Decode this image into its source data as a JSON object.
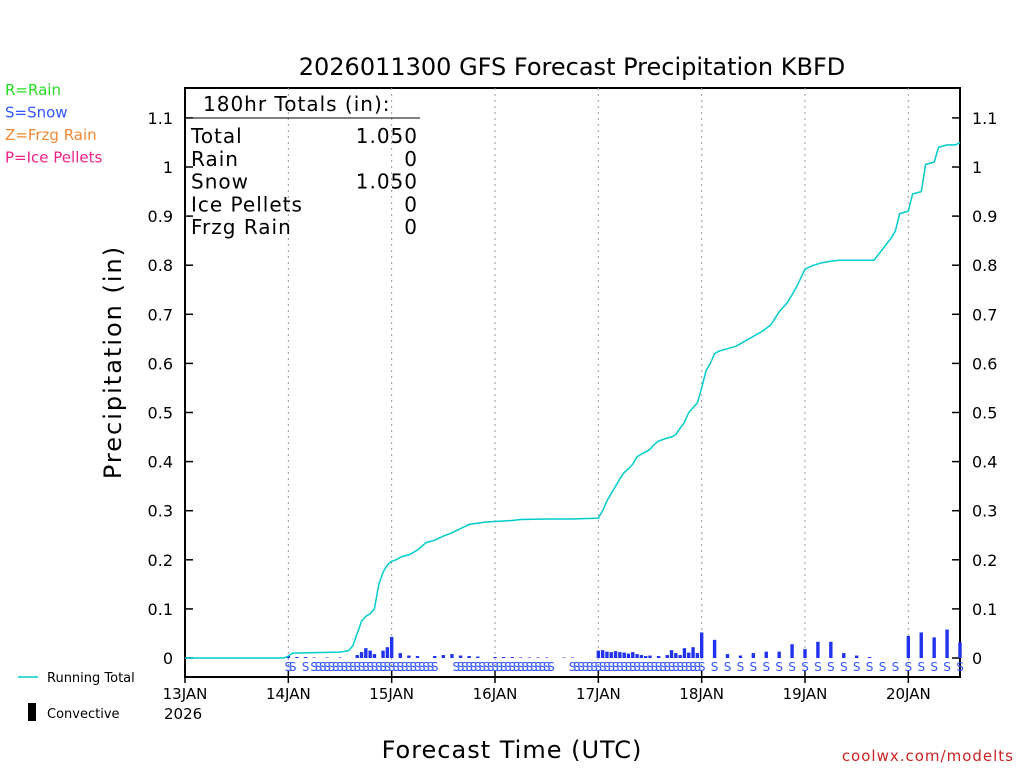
{
  "chart_data": {
    "type": "bar",
    "title": "2026011300 GFS Forecast Precipitation KBFD",
    "xlabel": "Forecast Time (UTC)",
    "ylabel": "Precipitation (in)",
    "ylim": [
      -0.04,
      1.15
    ],
    "xlim_hours": [
      0,
      180
    ],
    "y_ticks": [
      "0",
      "0.1",
      "0.2",
      "0.3",
      "0.4",
      "0.5",
      "0.6",
      "0.7",
      "0.8",
      "0.9",
      "1",
      "1.1"
    ],
    "y_tick_values": [
      0,
      0.1,
      0.2,
      0.3,
      0.4,
      0.5,
      0.6,
      0.7,
      0.8,
      0.9,
      1.0,
      1.1
    ],
    "x_ticks": [
      {
        "label": "13JAN",
        "hour": 0
      },
      {
        "label": "14JAN",
        "hour": 24
      },
      {
        "label": "15JAN",
        "hour": 48
      },
      {
        "label": "16JAN",
        "hour": 72
      },
      {
        "label": "17JAN",
        "hour": 96
      },
      {
        "label": "18JAN",
        "hour": 120
      },
      {
        "label": "19JAN",
        "hour": 144
      },
      {
        "label": "20JAN",
        "hour": 168
      }
    ],
    "year_label": "2026",
    "legend_top": [
      {
        "text": "R=Rain",
        "color": "#22dd22"
      },
      {
        "text": "S=Snow",
        "color": "#3355ff"
      },
      {
        "text": "Z=Frzg Rain",
        "color": "#ee8833"
      },
      {
        "text": "P=Ice Pellets",
        "color": "#ee2288"
      }
    ],
    "legend_bottom": [
      {
        "text": "Running Total",
        "color": "#00cccc",
        "kind": "line"
      },
      {
        "text": "Convective",
        "color": "#000000",
        "kind": "bar"
      }
    ],
    "totals": {
      "header": "180hr Totals (in):",
      "rows": [
        {
          "label": "Total",
          "value": "1.050"
        },
        {
          "label": "Rain",
          "value": "0"
        },
        {
          "label": "Snow",
          "value": "1.050"
        },
        {
          "label": "Ice Pellets",
          "value": "0"
        },
        {
          "label": "Frzg Rain",
          "value": "0"
        }
      ]
    },
    "series": [
      {
        "name": "Running Total",
        "color": "#00cccc",
        "x": [
          0,
          23,
          24,
          25,
          30,
          36,
          38,
          39,
          40,
          41,
          42,
          43,
          44,
          45,
          46,
          47,
          48,
          49,
          50,
          51,
          52,
          54,
          56,
          58,
          60,
          62,
          66,
          70,
          72,
          74,
          76,
          78,
          84,
          90,
          96,
          97,
          98,
          99,
          100,
          101,
          102,
          103,
          104,
          105,
          106,
          107,
          108,
          109,
          110,
          111,
          112,
          113,
          114,
          115,
          116,
          117,
          118,
          119,
          120,
          121,
          122,
          123,
          124,
          126,
          128,
          130,
          132,
          134,
          136,
          138,
          140,
          142,
          144,
          146,
          148,
          150,
          152,
          154,
          156,
          160,
          164,
          165,
          166,
          168,
          169,
          171,
          172,
          174,
          175,
          177,
          178,
          179,
          180
        ],
        "values": [
          0,
          0,
          0.004,
          0.01,
          0.011,
          0.012,
          0.015,
          0.025,
          0.05,
          0.075,
          0.085,
          0.09,
          0.1,
          0.15,
          0.175,
          0.19,
          0.197,
          0.2,
          0.205,
          0.208,
          0.21,
          0.22,
          0.235,
          0.24,
          0.248,
          0.255,
          0.272,
          0.277,
          0.278,
          0.279,
          0.28,
          0.282,
          0.283,
          0.283,
          0.285,
          0.3,
          0.32,
          0.335,
          0.35,
          0.365,
          0.378,
          0.385,
          0.395,
          0.41,
          0.415,
          0.42,
          0.425,
          0.435,
          0.442,
          0.445,
          0.448,
          0.45,
          0.455,
          0.468,
          0.48,
          0.5,
          0.51,
          0.52,
          0.55,
          0.585,
          0.6,
          0.62,
          0.625,
          0.63,
          0.635,
          0.645,
          0.655,
          0.665,
          0.678,
          0.705,
          0.725,
          0.755,
          0.792,
          0.8,
          0.805,
          0.808,
          0.81,
          0.81,
          0.81,
          0.81,
          0.855,
          0.87,
          0.905,
          0.91,
          0.945,
          0.95,
          1.005,
          1.01,
          1.04,
          1.045,
          1.045,
          1.045,
          1.05
        ]
      },
      {
        "name": "Precip Bars (Snow)",
        "color": "#2233ee",
        "x": [
          24,
          26,
          28,
          30,
          33,
          36,
          40,
          41,
          42,
          43,
          44,
          46,
          47,
          48,
          50,
          52,
          54,
          58,
          60,
          62,
          64,
          66,
          68,
          72,
          74,
          76,
          78,
          80,
          82,
          84,
          88,
          90,
          96,
          97,
          98,
          99,
          100,
          101,
          102,
          103,
          104,
          105,
          106,
          107,
          108,
          110,
          112,
          113,
          114,
          115,
          116,
          117,
          118,
          119,
          120,
          123,
          126,
          129,
          132,
          135,
          138,
          141,
          144,
          147,
          150,
          153,
          156,
          159,
          168,
          171,
          174,
          177,
          180
        ],
        "values": [
          0.004,
          0.002,
          0.002,
          0.001,
          0.001,
          0.001,
          0.006,
          0.012,
          0.02,
          0.015,
          0.008,
          0.015,
          0.022,
          0.043,
          0.01,
          0.005,
          0.004,
          0.004,
          0.006,
          0.008,
          0.005,
          0.004,
          0.003,
          0.002,
          0.002,
          0.002,
          0.001,
          0.001,
          0.001,
          0.001,
          0.001,
          0.001,
          0.015,
          0.016,
          0.013,
          0.012,
          0.014,
          0.012,
          0.011,
          0.009,
          0.012,
          0.008,
          0.006,
          0.004,
          0.005,
          0.004,
          0.006,
          0.016,
          0.01,
          0.006,
          0.02,
          0.011,
          0.022,
          0.01,
          0.052,
          0.037,
          0.008,
          0.005,
          0.01,
          0.013,
          0.013,
          0.028,
          0.018,
          0.033,
          0.033,
          0.01,
          0.005,
          0.002,
          0.045,
          0.052,
          0.042,
          0.058,
          0.032
        ]
      }
    ],
    "ptype_labels": {
      "symbol": "S",
      "color": "#3355ff",
      "dense_ranges": [
        [
          24,
          25.5
        ],
        [
          30,
          58
        ],
        [
          63,
          85
        ],
        [
          90,
          120
        ]
      ],
      "sparse_hours": [
        28,
        123,
        126,
        129,
        132,
        135,
        138,
        141,
        144,
        147,
        150,
        153,
        156,
        159,
        162,
        165,
        168,
        171,
        174,
        177,
        180
      ]
    },
    "watermark": "coolwx.com/modelts"
  }
}
